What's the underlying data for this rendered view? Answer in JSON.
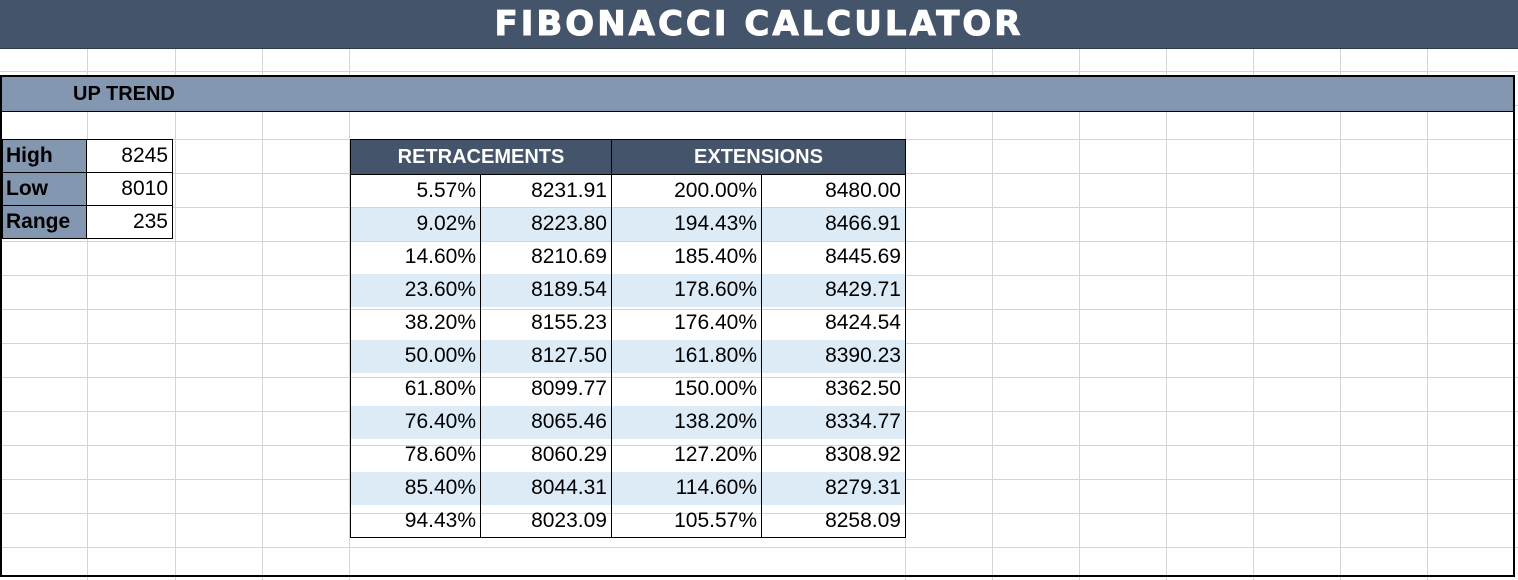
{
  "title": "FIBONACCI CALCULATOR",
  "trend_label": "UP TREND",
  "inputs": [
    {
      "label": "High",
      "value": "8245"
    },
    {
      "label": "Low",
      "value": "8010"
    },
    {
      "label": "Range",
      "value": "235"
    }
  ],
  "headers": {
    "retracements": "RETRACEMENTS",
    "extensions": "EXTENSIONS"
  },
  "rows": [
    {
      "ret_pct": "5.57%",
      "ret_val": "8231.91",
      "ext_pct": "200.00%",
      "ext_val": "8480.00"
    },
    {
      "ret_pct": "9.02%",
      "ret_val": "8223.80",
      "ext_pct": "194.43%",
      "ext_val": "8466.91"
    },
    {
      "ret_pct": "14.60%",
      "ret_val": "8210.69",
      "ext_pct": "185.40%",
      "ext_val": "8445.69"
    },
    {
      "ret_pct": "23.60%",
      "ret_val": "8189.54",
      "ext_pct": "178.60%",
      "ext_val": "8429.71"
    },
    {
      "ret_pct": "38.20%",
      "ret_val": "8155.23",
      "ext_pct": "176.40%",
      "ext_val": "8424.54"
    },
    {
      "ret_pct": "50.00%",
      "ret_val": "8127.50",
      "ext_pct": "161.80%",
      "ext_val": "8390.23"
    },
    {
      "ret_pct": "61.80%",
      "ret_val": "8099.77",
      "ext_pct": "150.00%",
      "ext_val": "8362.50"
    },
    {
      "ret_pct": "76.40%",
      "ret_val": "8065.46",
      "ext_pct": "138.20%",
      "ext_val": "8334.77"
    },
    {
      "ret_pct": "78.60%",
      "ret_val": "8060.29",
      "ext_pct": "127.20%",
      "ext_val": "8308.92"
    },
    {
      "ret_pct": "85.40%",
      "ret_val": "8044.31",
      "ext_pct": "114.60%",
      "ext_val": "8279.31"
    },
    {
      "ret_pct": "94.43%",
      "ret_val": "8023.09",
      "ext_pct": "105.57%",
      "ext_val": "8258.09"
    }
  ],
  "colors": {
    "title_bg": "#44546a",
    "trend_bg": "#8497b0",
    "header_bg": "#44546a",
    "alt_row_bg": "#ddebf7"
  }
}
